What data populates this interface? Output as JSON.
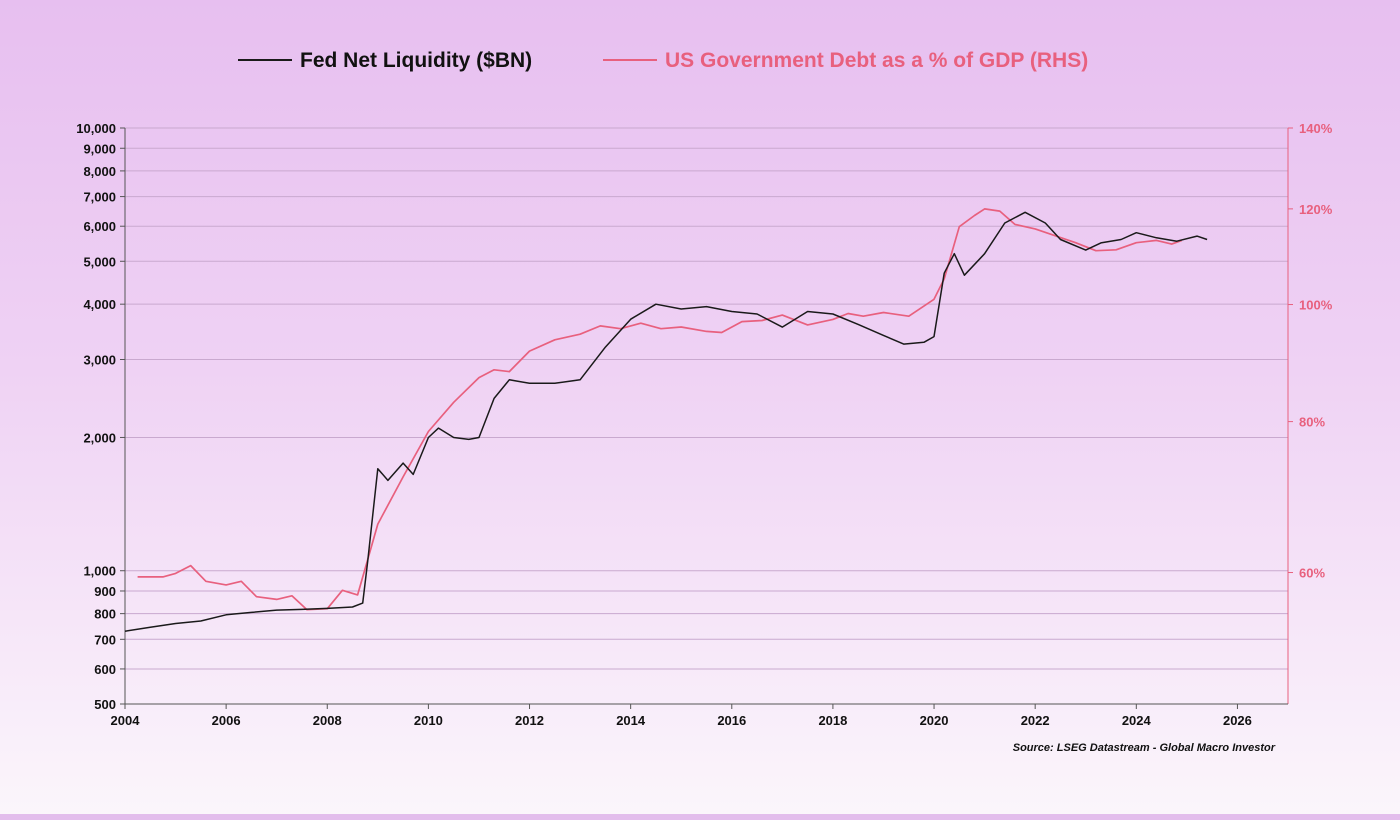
{
  "chart_data": {
    "type": "line",
    "title": "",
    "legend_position": "top-center",
    "grid": true,
    "x_axis": {
      "range": [
        2004,
        2027
      ],
      "ticks": [
        "2004",
        "2006",
        "2008",
        "2010",
        "2012",
        "2014",
        "2016",
        "2018",
        "2020",
        "2022",
        "2024",
        "2026"
      ]
    },
    "y_left": {
      "scale": "log",
      "range": [
        500,
        10000
      ],
      "ticks": [
        {
          "value": 500,
          "label": "500"
        },
        {
          "value": 600,
          "label": "600"
        },
        {
          "value": 700,
          "label": "700"
        },
        {
          "value": 800,
          "label": "800"
        },
        {
          "value": 900,
          "label": "900"
        },
        {
          "value": 1000,
          "label": "1,000"
        },
        {
          "value": 2000,
          "label": "2,000"
        },
        {
          "value": 3000,
          "label": "3,000"
        },
        {
          "value": 4000,
          "label": "4,000"
        },
        {
          "value": 5000,
          "label": "5,000"
        },
        {
          "value": 6000,
          "label": "6,000"
        },
        {
          "value": 7000,
          "label": "7,000"
        },
        {
          "value": 8000,
          "label": "8,000"
        },
        {
          "value": 9000,
          "label": "9,000"
        },
        {
          "value": 10000,
          "label": "10,000"
        }
      ]
    },
    "y_right": {
      "scale": "log",
      "range": [
        46.7,
        140
      ],
      "ticks": [
        {
          "value": 60,
          "label": "60%"
        },
        {
          "value": 80,
          "label": "80%"
        },
        {
          "value": 100,
          "label": "100%"
        },
        {
          "value": 120,
          "label": "120%"
        },
        {
          "value": 140,
          "label": "140%"
        }
      ]
    },
    "series": [
      {
        "name": "Fed Net Liquidity ($BN)",
        "axis": "left",
        "color": "#1a1a1a",
        "points": [
          [
            2004.0,
            730
          ],
          [
            2004.5,
            745
          ],
          [
            2005.0,
            760
          ],
          [
            2005.5,
            770
          ],
          [
            2006.0,
            795
          ],
          [
            2006.5,
            805
          ],
          [
            2007.0,
            815
          ],
          [
            2007.5,
            818
          ],
          [
            2008.0,
            822
          ],
          [
            2008.5,
            828
          ],
          [
            2008.7,
            845
          ],
          [
            2008.8,
            1050
          ],
          [
            2009.0,
            1700
          ],
          [
            2009.2,
            1600
          ],
          [
            2009.5,
            1750
          ],
          [
            2009.7,
            1650
          ],
          [
            2010.0,
            2000
          ],
          [
            2010.2,
            2100
          ],
          [
            2010.5,
            2000
          ],
          [
            2010.8,
            1980
          ],
          [
            2011.0,
            2000
          ],
          [
            2011.3,
            2450
          ],
          [
            2011.6,
            2700
          ],
          [
            2012.0,
            2650
          ],
          [
            2012.5,
            2650
          ],
          [
            2013.0,
            2700
          ],
          [
            2013.5,
            3200
          ],
          [
            2014.0,
            3700
          ],
          [
            2014.5,
            4000
          ],
          [
            2015.0,
            3900
          ],
          [
            2015.5,
            3950
          ],
          [
            2016.0,
            3850
          ],
          [
            2016.5,
            3800
          ],
          [
            2017.0,
            3550
          ],
          [
            2017.5,
            3850
          ],
          [
            2018.0,
            3800
          ],
          [
            2018.5,
            3600
          ],
          [
            2019.0,
            3400
          ],
          [
            2019.4,
            3250
          ],
          [
            2019.8,
            3280
          ],
          [
            2020.0,
            3380
          ],
          [
            2020.2,
            4700
          ],
          [
            2020.4,
            5200
          ],
          [
            2020.6,
            4650
          ],
          [
            2021.0,
            5200
          ],
          [
            2021.4,
            6100
          ],
          [
            2021.8,
            6450
          ],
          [
            2022.2,
            6100
          ],
          [
            2022.5,
            5600
          ],
          [
            2023.0,
            5300
          ],
          [
            2023.3,
            5500
          ],
          [
            2023.7,
            5600
          ],
          [
            2024.0,
            5800
          ],
          [
            2024.4,
            5650
          ],
          [
            2024.8,
            5550
          ],
          [
            2025.2,
            5700
          ],
          [
            2025.4,
            5600
          ]
        ]
      },
      {
        "name": "US Government Debt as a % of GDP (RHS)",
        "axis": "right",
        "color": "#e8607e",
        "points": [
          [
            2004.25,
            59.5
          ],
          [
            2004.75,
            59.5
          ],
          [
            2005.0,
            59.9
          ],
          [
            2005.3,
            60.8
          ],
          [
            2005.6,
            59.0
          ],
          [
            2006.0,
            58.6
          ],
          [
            2006.3,
            59.0
          ],
          [
            2006.6,
            57.3
          ],
          [
            2007.0,
            57.0
          ],
          [
            2007.3,
            57.4
          ],
          [
            2007.6,
            55.9
          ],
          [
            2008.0,
            56.0
          ],
          [
            2008.3,
            58.0
          ],
          [
            2008.6,
            57.5
          ],
          [
            2008.8,
            61.5
          ],
          [
            2009.0,
            65.8
          ],
          [
            2009.5,
            72.0
          ],
          [
            2010.0,
            78.5
          ],
          [
            2010.5,
            83.0
          ],
          [
            2011.0,
            87.0
          ],
          [
            2011.3,
            88.3
          ],
          [
            2011.6,
            88.0
          ],
          [
            2012.0,
            91.5
          ],
          [
            2012.5,
            93.5
          ],
          [
            2013.0,
            94.5
          ],
          [
            2013.4,
            96.0
          ],
          [
            2013.8,
            95.5
          ],
          [
            2014.2,
            96.5
          ],
          [
            2014.6,
            95.5
          ],
          [
            2015.0,
            95.8
          ],
          [
            2015.5,
            95.0
          ],
          [
            2015.8,
            94.8
          ],
          [
            2016.2,
            96.8
          ],
          [
            2016.6,
            97.0
          ],
          [
            2017.0,
            98.0
          ],
          [
            2017.5,
            96.2
          ],
          [
            2018.0,
            97.2
          ],
          [
            2018.3,
            98.3
          ],
          [
            2018.6,
            97.8
          ],
          [
            2019.0,
            98.5
          ],
          [
            2019.5,
            97.8
          ],
          [
            2020.0,
            101.0
          ],
          [
            2020.2,
            105.0
          ],
          [
            2020.5,
            116.0
          ],
          [
            2020.8,
            118.5
          ],
          [
            2021.0,
            120.0
          ],
          [
            2021.3,
            119.5
          ],
          [
            2021.6,
            116.5
          ],
          [
            2022.0,
            115.5
          ],
          [
            2022.4,
            114.0
          ],
          [
            2022.8,
            112.5
          ],
          [
            2023.2,
            110.8
          ],
          [
            2023.6,
            111.0
          ],
          [
            2024.0,
            112.5
          ],
          [
            2024.4,
            113.0
          ],
          [
            2024.7,
            112.2
          ],
          [
            2024.9,
            113.0
          ]
        ]
      }
    ],
    "source": "Source: LSEG Datastream - Global Macro Investor"
  }
}
